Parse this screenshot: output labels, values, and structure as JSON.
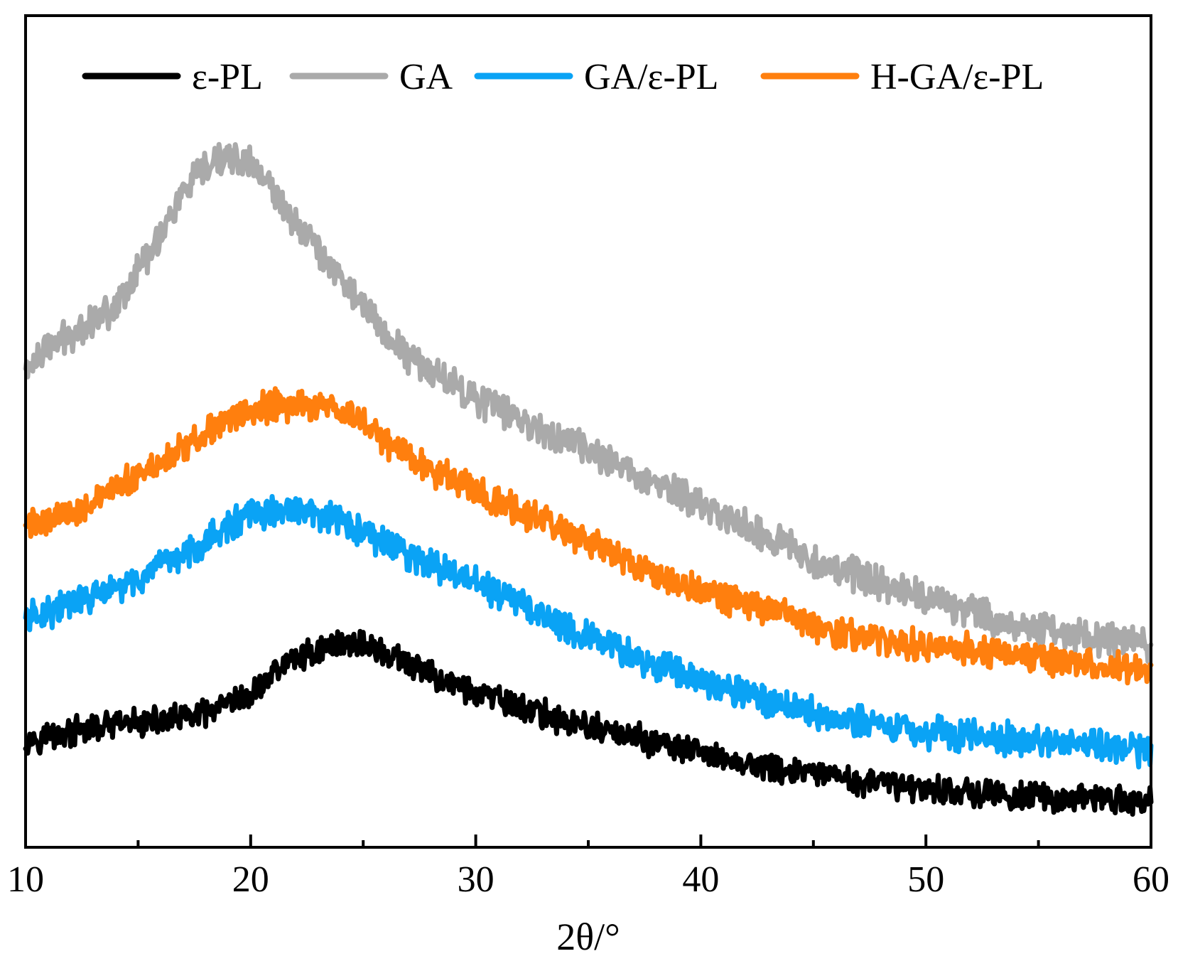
{
  "chart_data": {
    "type": "line",
    "title": "",
    "xlabel": "2θ/°",
    "ylabel": "",
    "xlim": [
      10,
      60
    ],
    "ylim": [
      0,
      100
    ],
    "x_ticks": [
      10,
      20,
      30,
      40,
      50,
      60
    ],
    "x_tick_labels": [
      "10",
      "20",
      "30",
      "40",
      "50",
      "60"
    ],
    "legend": {
      "placement": "top",
      "orientation": "horizontal"
    },
    "grid": false,
    "y_axis_ticks_visible": false,
    "series": [
      {
        "name": "ε-PL",
        "color": "#000000",
        "noise": 1.6,
        "x": [
          10,
          12,
          14,
          16,
          18,
          20,
          21,
          22,
          23,
          24,
          25,
          26,
          27,
          28,
          30,
          32,
          34,
          36,
          38,
          40,
          42,
          44,
          46,
          48,
          50,
          52,
          54,
          56,
          58,
          60
        ],
        "y": [
          11,
          12,
          13,
          13.5,
          14.5,
          17,
          20.5,
          22.5,
          23.5,
          24.5,
          24.5,
          23,
          21.5,
          20,
          17.5,
          15.5,
          13.5,
          12,
          10.5,
          9,
          7.5,
          6.5,
          5.5,
          4.8,
          4.2,
          3.5,
          3,
          2.8,
          2.5,
          2.2
        ]
      },
      {
        "name": "GA",
        "color": "#AAAAAA",
        "noise": 1.9,
        "x": [
          10,
          11,
          12,
          13,
          14,
          15,
          16,
          17,
          18,
          19,
          20,
          21,
          22,
          23,
          24,
          25,
          26,
          27,
          28,
          29,
          30,
          32,
          34,
          36,
          38,
          40,
          42,
          44,
          46,
          48,
          50,
          52,
          54,
          56,
          58,
          60
        ],
        "y": [
          63,
          66,
          68,
          70,
          72,
          77,
          82,
          88,
          91,
          93,
          92,
          88,
          84,
          80,
          76,
          72,
          68,
          65,
          63,
          61,
          59,
          56,
          53,
          50,
          47,
          44,
          41,
          38,
          35,
          33,
          31,
          29,
          27,
          26,
          25,
          24
        ]
      },
      {
        "name": "GA/ε-PL",
        "color": "#0AA3F5",
        "noise": 1.8,
        "x": [
          10,
          12,
          14,
          16,
          17,
          18,
          19,
          20,
          21,
          22,
          23,
          24,
          25,
          26,
          27,
          28,
          30,
          32,
          34,
          36,
          38,
          40,
          42,
          44,
          46,
          48,
          50,
          52,
          54,
          56,
          58,
          60
        ],
        "y": [
          28,
          30,
          32,
          35,
          37,
          39,
          41,
          42.5,
          43,
          43,
          42.5,
          41.5,
          40,
          38.5,
          37,
          35.5,
          33,
          30,
          27,
          24,
          21.5,
          19.5,
          17.5,
          15.5,
          14,
          13,
          12,
          11.5,
          11,
          10.5,
          10,
          9.5
        ]
      },
      {
        "name": "H-GA/ε-PL",
        "color": "#FF7F0E",
        "noise": 1.8,
        "x": [
          10,
          12,
          14,
          16,
          18,
          19,
          20,
          21,
          22,
          23,
          24,
          25,
          26,
          28,
          30,
          32,
          34,
          36,
          38,
          40,
          42,
          44,
          46,
          48,
          50,
          52,
          54,
          56,
          58,
          60
        ],
        "y": [
          41,
          43,
          46,
          50,
          54,
          56,
          57,
          58,
          58,
          58,
          57,
          56,
          53,
          49,
          46,
          43,
          40,
          37,
          34,
          32,
          30,
          28,
          26,
          25,
          24,
          23.5,
          23,
          22,
          21,
          20.5
        ]
      }
    ]
  }
}
